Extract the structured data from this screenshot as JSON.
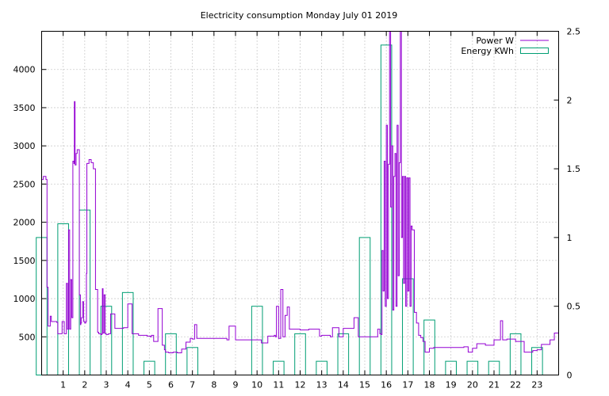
{
  "chart_data": {
    "type": "bar",
    "title": "Electricity consumption Monday July 01 2019",
    "xlabel": "",
    "ylabel": "",
    "xlim": [
      0,
      24
    ],
    "ylim_left": [
      0,
      4500
    ],
    "ylim_right": [
      0,
      2.5
    ],
    "grid": true,
    "legend_position": "top-right",
    "x_ticks": [
      "1",
      "2",
      "3",
      "4",
      "5",
      "6",
      "7",
      "8",
      "9",
      "10",
      "11",
      "12",
      "13",
      "14",
      "15",
      "16",
      "17",
      "18",
      "19",
      "20",
      "21",
      "22",
      "23"
    ],
    "y_ticks_left": [
      500,
      1000,
      1500,
      2000,
      2500,
      3000,
      3500,
      4000
    ],
    "y_ticks_right": [
      "0",
      "0.5",
      "1",
      "1.5",
      "2",
      "2.5"
    ],
    "series": [
      {
        "name": "Power W",
        "color": "#9400d3",
        "axis": "left",
        "style": "steps",
        "x": [
          0.0,
          0.08,
          0.2,
          0.25,
          0.3,
          0.4,
          0.45,
          0.55,
          0.65,
          0.7,
          0.75,
          0.95,
          1.05,
          1.15,
          1.2,
          1.25,
          1.3,
          1.35,
          1.4,
          1.45,
          1.5,
          1.52,
          1.55,
          1.6,
          1.65,
          1.75,
          1.8,
          1.82,
          1.85,
          1.9,
          1.95,
          2.0,
          2.05,
          2.08,
          2.1,
          2.2,
          2.3,
          2.4,
          2.5,
          2.6,
          2.65,
          2.7,
          2.75,
          2.8,
          2.82,
          2.85,
          2.9,
          2.95,
          3.0,
          3.05,
          3.1,
          3.2,
          3.4,
          3.45,
          3.5,
          3.7,
          3.8,
          4.0,
          4.2,
          4.5,
          4.9,
          5.0,
          5.05,
          5.1,
          5.2,
          5.4,
          5.6,
          5.7,
          5.75,
          5.8,
          5.9,
          6.0,
          6.1,
          6.3,
          6.5,
          6.7,
          6.9,
          7.0,
          7.1,
          7.2,
          7.3,
          7.5,
          8.0,
          8.5,
          8.6,
          8.7,
          9.0,
          9.5,
          9.7,
          9.8,
          10.0,
          10.2,
          10.5,
          10.8,
          10.85,
          10.9,
          11.0,
          11.1,
          11.2,
          11.3,
          11.4,
          11.5,
          11.8,
          12.0,
          12.4,
          12.5,
          12.7,
          12.9,
          13.0,
          13.4,
          13.5,
          13.6,
          13.8,
          14.0,
          14.5,
          14.7,
          15.0,
          15.4,
          15.5,
          15.6,
          15.65,
          15.7,
          15.75,
          15.8,
          15.85,
          15.9,
          15.95,
          16.0,
          16.05,
          16.1,
          16.15,
          16.2,
          16.25,
          16.3,
          16.35,
          16.4,
          16.45,
          16.5,
          16.55,
          16.6,
          16.65,
          16.7,
          16.75,
          16.8,
          16.85,
          16.9,
          16.95,
          17.0,
          17.05,
          17.1,
          17.15,
          17.2,
          17.3,
          17.4,
          17.5,
          17.6,
          17.7,
          17.8,
          18.0,
          18.2,
          18.4,
          18.6,
          18.8,
          19.0,
          19.2,
          19.4,
          19.6,
          19.8,
          20.0,
          20.2,
          20.4,
          20.6,
          20.8,
          21.0,
          21.2,
          21.3,
          21.4,
          21.6,
          21.8,
          22.0,
          22.2,
          22.4,
          22.6,
          22.8,
          23.0,
          23.2,
          23.4,
          23.6,
          23.8,
          24.0
        ],
        "values": [
          2560,
          2600,
          2560,
          1150,
          640,
          770,
          700,
          700,
          700,
          690,
          540,
          700,
          540,
          1200,
          600,
          1900,
          600,
          1250,
          750,
          2800,
          2770,
          3580,
          2750,
          2900,
          2950,
          1050,
          660,
          680,
          750,
          960,
          700,
          680,
          700,
          1330,
          2770,
          2820,
          2780,
          2700,
          1120,
          560,
          540,
          540,
          530,
          540,
          1130,
          550,
          1050,
          540,
          530,
          530,
          540,
          800,
          610,
          610,
          610,
          610,
          620,
          930,
          540,
          520,
          510,
          510,
          500,
          520,
          440,
          870,
          390,
          330,
          300,
          300,
          290,
          290,
          300,
          290,
          340,
          430,
          480,
          470,
          660,
          480,
          480,
          480,
          480,
          480,
          460,
          640,
          460,
          460,
          460,
          460,
          460,
          420,
          510,
          520,
          500,
          900,
          480,
          1120,
          500,
          780,
          890,
          600,
          600,
          590,
          600,
          600,
          600,
          510,
          520,
          500,
          620,
          620,
          500,
          610,
          750,
          500,
          500,
          500,
          500,
          600,
          600,
          540,
          530,
          1630,
          1100,
          2800,
          900,
          3270,
          1000,
          2760,
          4500,
          2200,
          3000,
          850,
          2600,
          2900,
          900,
          3270,
          1300,
          2780,
          4500,
          1800,
          2600,
          1200,
          2600,
          900,
          2580,
          1100,
          2580,
          900,
          1950,
          1900,
          820,
          680,
          520,
          490,
          440,
          300,
          350,
          360,
          360,
          360,
          360,
          360,
          360,
          360,
          370,
          300,
          350,
          410,
          410,
          390,
          390,
          460,
          460,
          710,
          460,
          470,
          470,
          440,
          440,
          300,
          300,
          320,
          330,
          400,
          400,
          460,
          550,
          550
        ]
      },
      {
        "name": "Energy KWh",
        "color": "#009e73",
        "axis": "right",
        "style": "boxes",
        "x": [
          0,
          1,
          2,
          3,
          4,
          5,
          6,
          7,
          8,
          9,
          10,
          11,
          12,
          13,
          14,
          15,
          16,
          17,
          18,
          19,
          20,
          21,
          22,
          23
        ],
        "values": [
          1.0,
          1.1,
          1.2,
          0.5,
          0.6,
          0.1,
          0.3,
          0.2,
          0,
          0,
          0.5,
          0.1,
          0.3,
          0.1,
          0.3,
          1.0,
          2.4,
          0.7,
          0.4,
          0.1,
          0.1,
          0.1,
          0.3,
          0.2
        ]
      }
    ]
  }
}
